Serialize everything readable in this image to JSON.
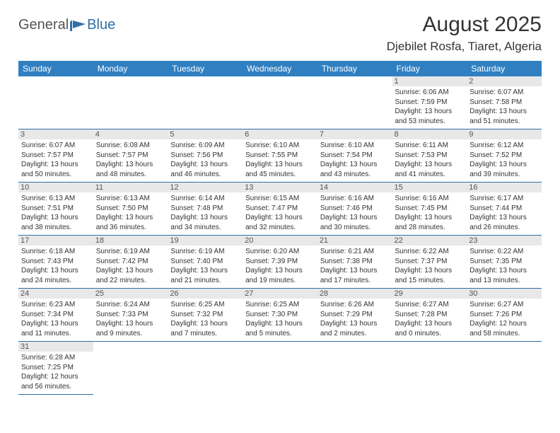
{
  "logo": {
    "general": "General",
    "blue": "Blue"
  },
  "colors": {
    "header_bg": "#3080c1",
    "header_text": "#ffffff",
    "divider": "#2f6fa8",
    "day_num_bg": "#e8e8e8",
    "text": "#333333"
  },
  "title": "August 2025",
  "location": "Djebilet Rosfa, Tiaret, Algeria",
  "weekdays": [
    "Sunday",
    "Monday",
    "Tuesday",
    "Wednesday",
    "Thursday",
    "Friday",
    "Saturday"
  ],
  "weeks": [
    [
      null,
      null,
      null,
      null,
      null,
      {
        "num": "1",
        "sunrise": "Sunrise: 6:06 AM",
        "sunset": "Sunset: 7:59 PM",
        "daylight": "Daylight: 13 hours and 53 minutes."
      },
      {
        "num": "2",
        "sunrise": "Sunrise: 6:07 AM",
        "sunset": "Sunset: 7:58 PM",
        "daylight": "Daylight: 13 hours and 51 minutes."
      }
    ],
    [
      {
        "num": "3",
        "sunrise": "Sunrise: 6:07 AM",
        "sunset": "Sunset: 7:57 PM",
        "daylight": "Daylight: 13 hours and 50 minutes."
      },
      {
        "num": "4",
        "sunrise": "Sunrise: 6:08 AM",
        "sunset": "Sunset: 7:57 PM",
        "daylight": "Daylight: 13 hours and 48 minutes."
      },
      {
        "num": "5",
        "sunrise": "Sunrise: 6:09 AM",
        "sunset": "Sunset: 7:56 PM",
        "daylight": "Daylight: 13 hours and 46 minutes."
      },
      {
        "num": "6",
        "sunrise": "Sunrise: 6:10 AM",
        "sunset": "Sunset: 7:55 PM",
        "daylight": "Daylight: 13 hours and 45 minutes."
      },
      {
        "num": "7",
        "sunrise": "Sunrise: 6:10 AM",
        "sunset": "Sunset: 7:54 PM",
        "daylight": "Daylight: 13 hours and 43 minutes."
      },
      {
        "num": "8",
        "sunrise": "Sunrise: 6:11 AM",
        "sunset": "Sunset: 7:53 PM",
        "daylight": "Daylight: 13 hours and 41 minutes."
      },
      {
        "num": "9",
        "sunrise": "Sunrise: 6:12 AM",
        "sunset": "Sunset: 7:52 PM",
        "daylight": "Daylight: 13 hours and 39 minutes."
      }
    ],
    [
      {
        "num": "10",
        "sunrise": "Sunrise: 6:13 AM",
        "sunset": "Sunset: 7:51 PM",
        "daylight": "Daylight: 13 hours and 38 minutes."
      },
      {
        "num": "11",
        "sunrise": "Sunrise: 6:13 AM",
        "sunset": "Sunset: 7:50 PM",
        "daylight": "Daylight: 13 hours and 36 minutes."
      },
      {
        "num": "12",
        "sunrise": "Sunrise: 6:14 AM",
        "sunset": "Sunset: 7:48 PM",
        "daylight": "Daylight: 13 hours and 34 minutes."
      },
      {
        "num": "13",
        "sunrise": "Sunrise: 6:15 AM",
        "sunset": "Sunset: 7:47 PM",
        "daylight": "Daylight: 13 hours and 32 minutes."
      },
      {
        "num": "14",
        "sunrise": "Sunrise: 6:16 AM",
        "sunset": "Sunset: 7:46 PM",
        "daylight": "Daylight: 13 hours and 30 minutes."
      },
      {
        "num": "15",
        "sunrise": "Sunrise: 6:16 AM",
        "sunset": "Sunset: 7:45 PM",
        "daylight": "Daylight: 13 hours and 28 minutes."
      },
      {
        "num": "16",
        "sunrise": "Sunrise: 6:17 AM",
        "sunset": "Sunset: 7:44 PM",
        "daylight": "Daylight: 13 hours and 26 minutes."
      }
    ],
    [
      {
        "num": "17",
        "sunrise": "Sunrise: 6:18 AM",
        "sunset": "Sunset: 7:43 PM",
        "daylight": "Daylight: 13 hours and 24 minutes."
      },
      {
        "num": "18",
        "sunrise": "Sunrise: 6:19 AM",
        "sunset": "Sunset: 7:42 PM",
        "daylight": "Daylight: 13 hours and 22 minutes."
      },
      {
        "num": "19",
        "sunrise": "Sunrise: 6:19 AM",
        "sunset": "Sunset: 7:40 PM",
        "daylight": "Daylight: 13 hours and 21 minutes."
      },
      {
        "num": "20",
        "sunrise": "Sunrise: 6:20 AM",
        "sunset": "Sunset: 7:39 PM",
        "daylight": "Daylight: 13 hours and 19 minutes."
      },
      {
        "num": "21",
        "sunrise": "Sunrise: 6:21 AM",
        "sunset": "Sunset: 7:38 PM",
        "daylight": "Daylight: 13 hours and 17 minutes."
      },
      {
        "num": "22",
        "sunrise": "Sunrise: 6:22 AM",
        "sunset": "Sunset: 7:37 PM",
        "daylight": "Daylight: 13 hours and 15 minutes."
      },
      {
        "num": "23",
        "sunrise": "Sunrise: 6:22 AM",
        "sunset": "Sunset: 7:35 PM",
        "daylight": "Daylight: 13 hours and 13 minutes."
      }
    ],
    [
      {
        "num": "24",
        "sunrise": "Sunrise: 6:23 AM",
        "sunset": "Sunset: 7:34 PM",
        "daylight": "Daylight: 13 hours and 11 minutes."
      },
      {
        "num": "25",
        "sunrise": "Sunrise: 6:24 AM",
        "sunset": "Sunset: 7:33 PM",
        "daylight": "Daylight: 13 hours and 9 minutes."
      },
      {
        "num": "26",
        "sunrise": "Sunrise: 6:25 AM",
        "sunset": "Sunset: 7:32 PM",
        "daylight": "Daylight: 13 hours and 7 minutes."
      },
      {
        "num": "27",
        "sunrise": "Sunrise: 6:25 AM",
        "sunset": "Sunset: 7:30 PM",
        "daylight": "Daylight: 13 hours and 5 minutes."
      },
      {
        "num": "28",
        "sunrise": "Sunrise: 6:26 AM",
        "sunset": "Sunset: 7:29 PM",
        "daylight": "Daylight: 13 hours and 2 minutes."
      },
      {
        "num": "29",
        "sunrise": "Sunrise: 6:27 AM",
        "sunset": "Sunset: 7:28 PM",
        "daylight": "Daylight: 13 hours and 0 minutes."
      },
      {
        "num": "30",
        "sunrise": "Sunrise: 6:27 AM",
        "sunset": "Sunset: 7:26 PM",
        "daylight": "Daylight: 12 hours and 58 minutes."
      }
    ],
    [
      {
        "num": "31",
        "sunrise": "Sunrise: 6:28 AM",
        "sunset": "Sunset: 7:25 PM",
        "daylight": "Daylight: 12 hours and 56 minutes."
      },
      null,
      null,
      null,
      null,
      null,
      null
    ]
  ]
}
